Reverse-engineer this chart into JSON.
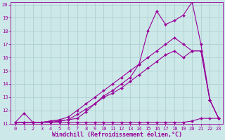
{
  "title": "",
  "xlabel": "Windchill (Refroidissement éolien,°C)",
  "background_color": "#cce8e8",
  "line_color": "#990099",
  "xlim": [
    -0.5,
    23.5
  ],
  "ylim": [
    11,
    20.2
  ],
  "xticks": [
    0,
    1,
    2,
    3,
    4,
    5,
    6,
    7,
    8,
    9,
    10,
    11,
    12,
    13,
    14,
    15,
    16,
    17,
    18,
    19,
    20,
    21,
    22,
    23
  ],
  "yticks": [
    11,
    12,
    13,
    14,
    15,
    16,
    17,
    18,
    19,
    20
  ],
  "grid_color": "#aacccc",
  "curves": [
    {
      "x": [
        0,
        1,
        2,
        3,
        4,
        5,
        6,
        7,
        8,
        9,
        10,
        11,
        12,
        13,
        14,
        15,
        16,
        17,
        18,
        19,
        20,
        21,
        22,
        23
      ],
      "y": [
        11.1,
        11.8,
        11.1,
        11.1,
        11.2,
        11.2,
        11.3,
        11.4,
        11.9,
        12.5,
        13.1,
        13.5,
        14.0,
        14.5,
        15.5,
        18.0,
        19.5,
        18.5,
        18.8,
        19.2,
        20.2,
        17.0,
        12.8,
        11.4
      ]
    },
    {
      "x": [
        0,
        1,
        2,
        3,
        4,
        5,
        6,
        7,
        8,
        9,
        10,
        11,
        12,
        13,
        14,
        15,
        16,
        17,
        18,
        19,
        20,
        21,
        22,
        23
      ],
      "y": [
        11.1,
        11.1,
        11.1,
        11.1,
        11.2,
        11.3,
        11.5,
        12.0,
        12.5,
        13.0,
        13.5,
        14.0,
        14.5,
        15.0,
        15.5,
        16.0,
        16.5,
        17.0,
        17.5,
        17.0,
        16.5,
        16.5,
        12.8,
        11.4
      ]
    },
    {
      "x": [
        0,
        1,
        2,
        3,
        4,
        5,
        6,
        7,
        8,
        9,
        10,
        11,
        12,
        13,
        14,
        15,
        16,
        17,
        18,
        19,
        20,
        21,
        22,
        23
      ],
      "y": [
        11.1,
        11.1,
        11.1,
        11.1,
        11.1,
        11.2,
        11.3,
        11.7,
        12.1,
        12.5,
        13.0,
        13.3,
        13.7,
        14.2,
        14.7,
        15.2,
        15.7,
        16.2,
        16.5,
        16.0,
        16.5,
        16.5,
        12.8,
        11.4
      ]
    },
    {
      "x": [
        0,
        1,
        2,
        3,
        4,
        5,
        6,
        7,
        8,
        9,
        10,
        11,
        12,
        13,
        14,
        15,
        16,
        17,
        18,
        19,
        20,
        21,
        22,
        23
      ],
      "y": [
        11.1,
        11.1,
        11.1,
        11.1,
        11.1,
        11.1,
        11.1,
        11.1,
        11.1,
        11.1,
        11.1,
        11.1,
        11.1,
        11.1,
        11.1,
        11.1,
        11.1,
        11.1,
        11.1,
        11.1,
        11.2,
        11.4,
        11.4,
        11.4
      ]
    }
  ],
  "marker": "D",
  "markersize": 2.0,
  "linewidth": 0.8,
  "tick_fontsize": 5.0,
  "xlabel_fontsize": 6.0
}
